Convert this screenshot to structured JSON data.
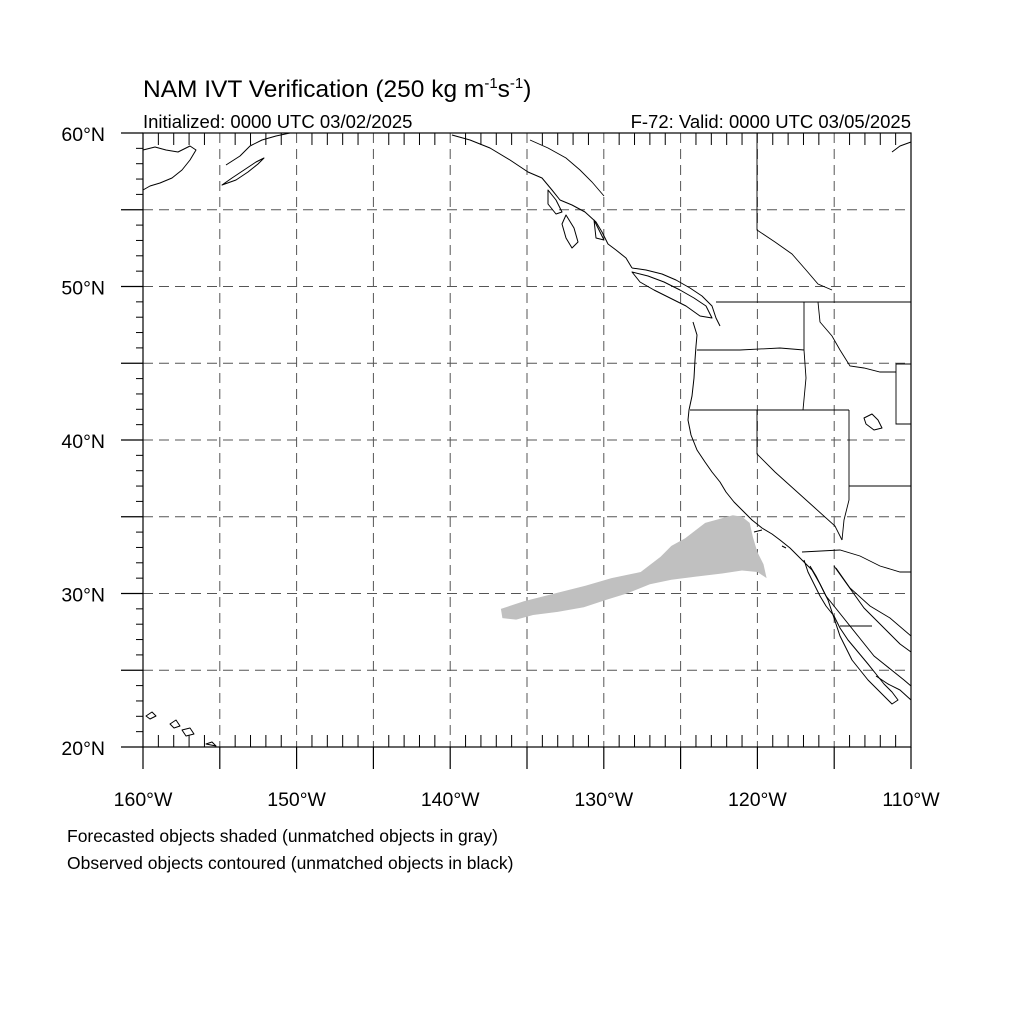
{
  "title": {
    "text": "NAM IVT Verification (250 kg m",
    "sup1": "-1",
    "mid": "s",
    "sup2": "-1",
    "end": ")"
  },
  "subtitle_left": "Initialized: 0000 UTC 03/02/2025",
  "subtitle_right": "F-72: Valid: 0000 UTC 03/05/2025",
  "map": {
    "lon_range": [
      -160,
      -110
    ],
    "lat_range": [
      20,
      60
    ],
    "grid_lons": [
      -155,
      -150,
      -145,
      -140,
      -135,
      -130,
      -125,
      -120,
      -115
    ],
    "grid_lats": [
      25,
      30,
      35,
      40,
      45,
      50,
      55
    ],
    "x_ticks": [
      {
        "lon": -160,
        "label": "160°W"
      },
      {
        "lon": -150,
        "label": "150°W"
      },
      {
        "lon": -140,
        "label": "140°W"
      },
      {
        "lon": -130,
        "label": "130°W"
      },
      {
        "lon": -120,
        "label": "120°W"
      },
      {
        "lon": -110,
        "label": "110°W"
      }
    ],
    "y_ticks": [
      {
        "lat": 20,
        "label": "20°N"
      },
      {
        "lat": 30,
        "label": "30°N"
      },
      {
        "lat": 40,
        "label": "40°N"
      },
      {
        "lat": 50,
        "label": "50°N"
      },
      {
        "lat": 60,
        "label": "60°N"
      }
    ],
    "colors": {
      "forecast_unmatched": "#c0c0c0",
      "observed_unmatched": "#000000",
      "grid": "#555555"
    },
    "forecast_object": [
      [
        -136.6,
        28.4
      ],
      [
        -136.7,
        29.0
      ],
      [
        -135.2,
        29.5
      ],
      [
        -133.2,
        30.0
      ],
      [
        -131.2,
        30.5
      ],
      [
        -129.5,
        31.0
      ],
      [
        -127.6,
        31.4
      ],
      [
        -126.3,
        32.4
      ],
      [
        -125.6,
        33.1
      ],
      [
        -124.7,
        33.6
      ],
      [
        -123.4,
        34.6
      ],
      [
        -121.6,
        35.1
      ],
      [
        -121.0,
        35.0
      ],
      [
        -120.5,
        34.6
      ],
      [
        -120.3,
        33.7
      ],
      [
        -120.0,
        32.7
      ],
      [
        -119.6,
        31.9
      ],
      [
        -119.4,
        31.0
      ],
      [
        -120.0,
        31.4
      ],
      [
        -121.0,
        31.5
      ],
      [
        -122.3,
        31.3
      ],
      [
        -124.0,
        31.1
      ],
      [
        -125.6,
        30.9
      ],
      [
        -127.0,
        30.6
      ],
      [
        -128.5,
        30.0
      ],
      [
        -129.8,
        29.6
      ],
      [
        -131.3,
        29.1
      ],
      [
        -133.0,
        28.8
      ],
      [
        -134.6,
        28.6
      ],
      [
        -135.7,
        28.3
      ]
    ]
  },
  "legend": {
    "line1": "Forecasted objects shaded (unmatched objects in gray)",
    "line2": "Observed objects contoured (unmatched objects in black)"
  }
}
